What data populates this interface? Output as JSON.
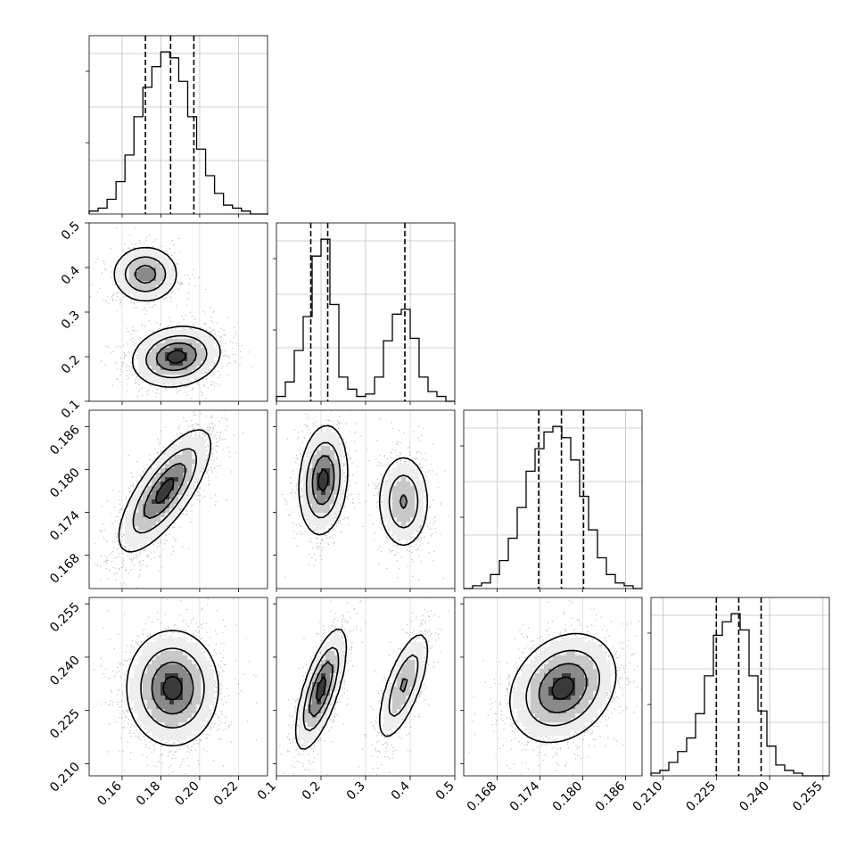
{
  "chart_data": {
    "type": "corner",
    "title": "",
    "variables": [
      {
        "name": "",
        "range": [
          0.143,
          0.235
        ],
        "ticks": [
          "0.16",
          "0.18",
          "0.20",
          "0.22"
        ],
        "tick_values": [
          0.16,
          0.18,
          0.2,
          0.22
        ],
        "quantiles": [
          0.172,
          0.185,
          0.197
        ],
        "hist_edges": [
          0.143,
          0.2354
        ],
        "hist_counts": [
          1,
          2,
          5,
          11,
          20,
          33,
          43,
          50,
          55,
          53,
          45,
          33,
          22,
          13,
          7,
          3,
          2,
          1,
          0,
          0
        ]
      },
      {
        "name": "",
        "range": [
          0.1,
          0.5
        ],
        "ticks": [
          "0.1",
          "0.2",
          "0.3",
          "0.4",
          "0.5"
        ],
        "tick_values": [
          0.1,
          0.2,
          0.3,
          0.4,
          0.5
        ],
        "quantiles": [
          0.177,
          0.215,
          0.388
        ],
        "hist_edges": [
          0.1,
          0.5
        ],
        "hist_counts": [
          2,
          8,
          21,
          35,
          60,
          67,
          40,
          10,
          5,
          2,
          3,
          10,
          25,
          36,
          38,
          26,
          10,
          4,
          2,
          0
        ]
      },
      {
        "name": "",
        "range": [
          0.1633,
          0.1883
        ],
        "ticks": [
          "0.168",
          "0.174",
          "0.180",
          "0.186"
        ],
        "tick_values": [
          0.168,
          0.174,
          0.18,
          0.186
        ],
        "quantiles": [
          0.1738,
          0.177,
          0.1801
        ],
        "hist_edges": [
          0.1633,
          0.1883
        ],
        "hist_counts": [
          0,
          1,
          2,
          5,
          10,
          18,
          29,
          42,
          50,
          56,
          58,
          54,
          46,
          33,
          21,
          11,
          5,
          2,
          1,
          0
        ]
      },
      {
        "name": "",
        "range": [
          0.2066,
          0.2568
        ],
        "ticks": [
          "0.210",
          "0.225",
          "0.240",
          "0.255"
        ],
        "tick_values": [
          0.21,
          0.225,
          0.24,
          0.255
        ],
        "quantiles": [
          0.225,
          0.2313,
          0.2376
        ],
        "hist_edges": [
          0.2066,
          0.2568
        ],
        "hist_counts": [
          1,
          2,
          5,
          9,
          14,
          23,
          37,
          52,
          57,
          60,
          54,
          37,
          24,
          11,
          4,
          2,
          1,
          0,
          0,
          0
        ]
      }
    ],
    "pairs": [
      {
        "row": 1,
        "col": 0,
        "modes": [
          {
            "x": 0.172,
            "y": 0.385,
            "sx": 0.0075,
            "sy": 0.028,
            "rho": 0.0,
            "w": 0.35
          },
          {
            "x": 0.188,
            "y": 0.2,
            "sx": 0.01,
            "sy": 0.03,
            "rho": 0.15,
            "w": 0.65
          }
        ]
      },
      {
        "row": 2,
        "col": 0,
        "modes": [
          {
            "x": 0.182,
            "y": 0.177,
            "sx": 0.0105,
            "sy": 0.0038,
            "rho": 0.75,
            "w": 1.0
          }
        ]
      },
      {
        "row": 2,
        "col": 1,
        "modes": [
          {
            "x": 0.205,
            "y": 0.1785,
            "sx": 0.024,
            "sy": 0.0034,
            "rho": 0.15,
            "w": 0.62
          },
          {
            "x": 0.385,
            "y": 0.1755,
            "sx": 0.026,
            "sy": 0.003,
            "rho": 0.0,
            "w": 0.38
          }
        ]
      },
      {
        "row": 3,
        "col": 0,
        "modes": [
          {
            "x": 0.186,
            "y": 0.2313,
            "sx": 0.0105,
            "sy": 0.0072,
            "rho": 0.0,
            "w": 1.0
          }
        ]
      },
      {
        "row": 3,
        "col": 1,
        "modes": [
          {
            "x": 0.2,
            "y": 0.231,
            "sx": 0.025,
            "sy": 0.0075,
            "rho": 0.7,
            "w": 0.62
          },
          {
            "x": 0.385,
            "y": 0.232,
            "sx": 0.026,
            "sy": 0.007,
            "rho": 0.7,
            "w": 0.38
          }
        ]
      },
      {
        "row": 3,
        "col": 2,
        "modes": [
          {
            "x": 0.1772,
            "y": 0.2313,
            "sx": 0.0033,
            "sy": 0.0068,
            "rho": 0.25,
            "w": 1.0
          }
        ]
      }
    ]
  }
}
